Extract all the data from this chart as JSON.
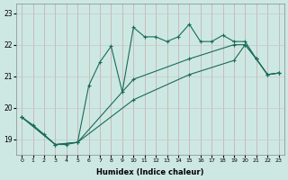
{
  "xlabel": "Humidex (Indice chaleur)",
  "background_color": "#cde8e2",
  "grid_color": "#b0d4cc",
  "line_color": "#1a6b5a",
  "xlim": [
    -0.5,
    23.5
  ],
  "ylim": [
    18.5,
    23.3
  ],
  "yticks": [
    19,
    20,
    21,
    22,
    23
  ],
  "xticks": [
    0,
    1,
    2,
    3,
    4,
    5,
    6,
    7,
    8,
    9,
    10,
    11,
    12,
    13,
    14,
    15,
    16,
    17,
    18,
    19,
    20,
    21,
    22,
    23
  ],
  "series1_x": [
    0,
    1,
    2,
    3,
    4,
    5,
    6,
    7,
    8,
    9,
    10,
    11,
    12,
    13,
    14,
    15,
    16,
    17,
    18,
    19,
    20,
    21,
    22,
    23
  ],
  "series1_y": [
    19.7,
    19.45,
    19.15,
    18.83,
    18.83,
    18.9,
    20.7,
    21.45,
    21.95,
    20.5,
    22.55,
    22.25,
    22.25,
    22.1,
    22.25,
    22.65,
    22.1,
    22.1,
    22.3,
    22.1,
    22.1,
    21.55,
    21.05,
    21.1
  ],
  "series2_x": [
    0,
    3,
    5,
    10,
    15,
    19,
    20,
    21,
    22,
    23
  ],
  "series2_y": [
    19.7,
    18.83,
    18.9,
    20.9,
    21.55,
    22.0,
    22.0,
    21.55,
    21.05,
    21.1
  ],
  "series3_x": [
    0,
    3,
    5,
    10,
    15,
    19,
    20,
    21,
    22,
    23
  ],
  "series3_y": [
    19.7,
    18.83,
    18.9,
    20.25,
    21.05,
    21.5,
    22.0,
    21.55,
    21.05,
    21.1
  ]
}
